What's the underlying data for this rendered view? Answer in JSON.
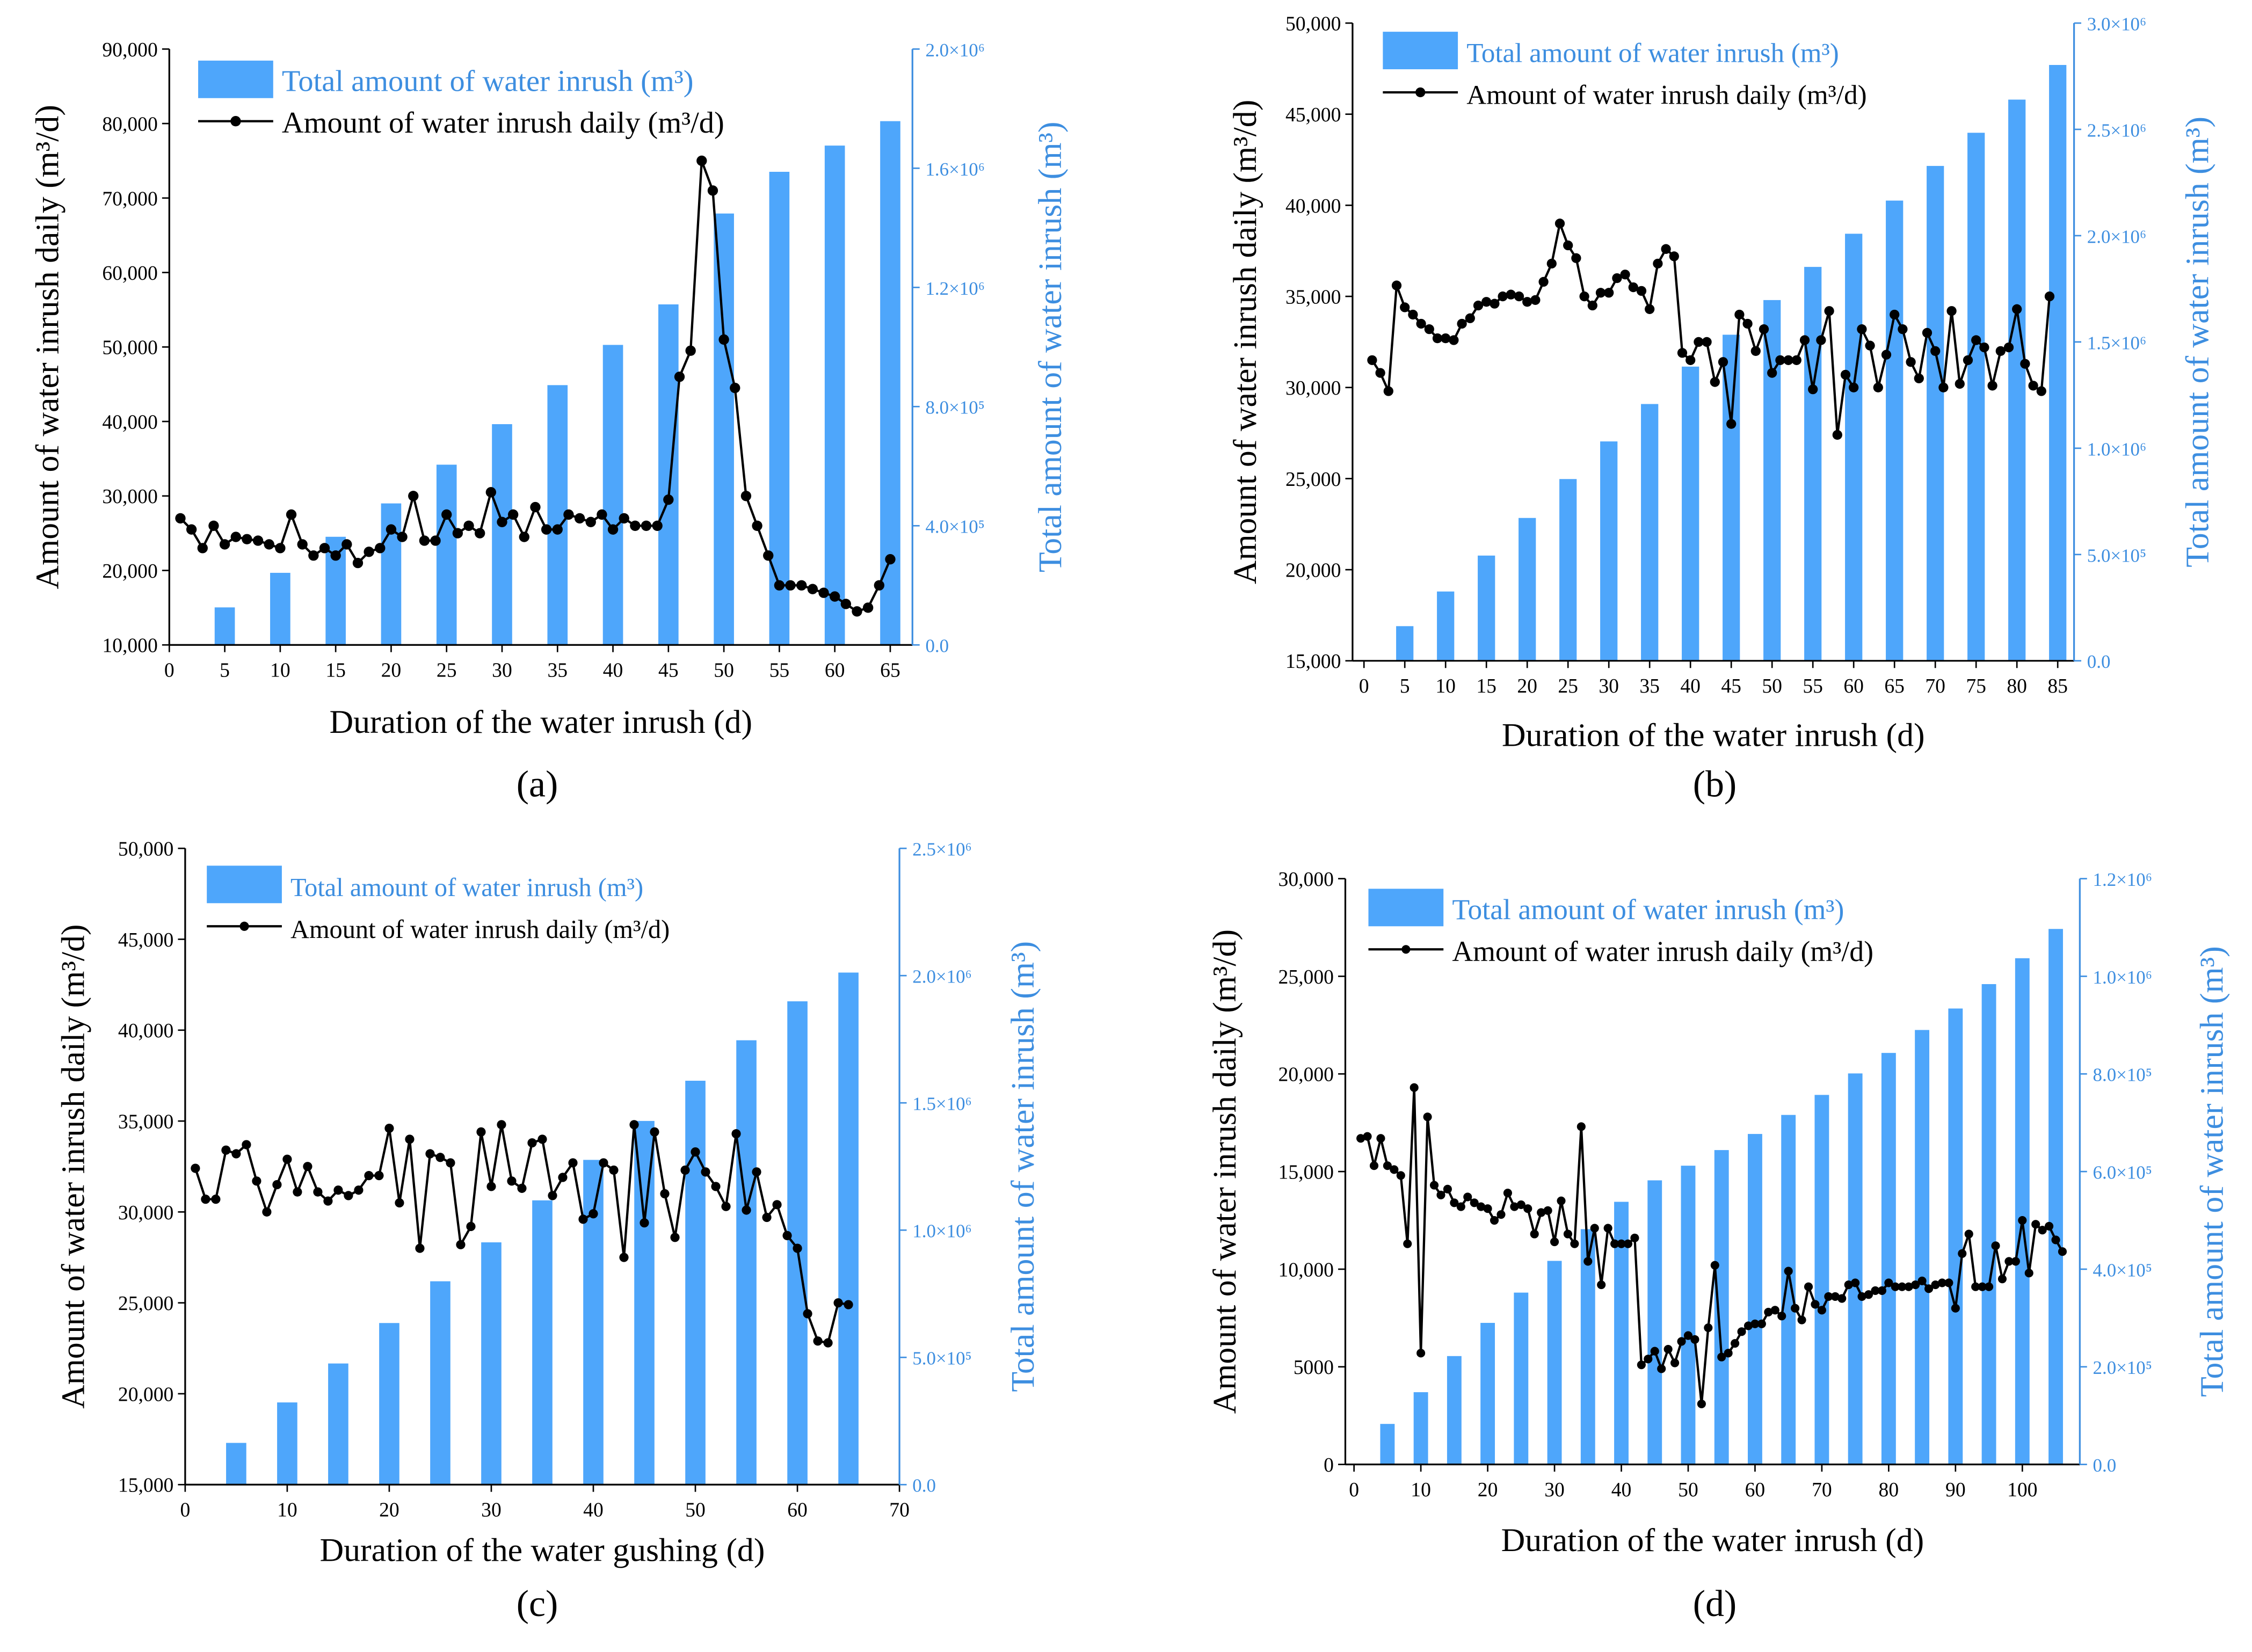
{
  "colors": {
    "bar": "#4ea6fb",
    "right_axis": "#3d8ee0",
    "line": "#000000"
  },
  "legend": {
    "bars": "Total amount of water inrush (m³)",
    "line": "Amount of water inrush daily (m³/d)"
  },
  "chart_data": [
    {
      "panel": "(a)",
      "type": "bar+line",
      "xlabel": "Duration of the water inrush (d)",
      "ylabel": "Amount of water inrush daily (m³/d)",
      "y2label": "Total amount of water inrush (m³)",
      "xlim": [
        0,
        67
      ],
      "ylim": [
        10000,
        90000
      ],
      "y2lim": [
        0,
        2000000
      ],
      "xticks": [
        0,
        5,
        10,
        15,
        20,
        25,
        30,
        35,
        40,
        45,
        50,
        55,
        60,
        65
      ],
      "yticks": [
        10000,
        20000,
        30000,
        40000,
        50000,
        60000,
        70000,
        80000,
        90000
      ],
      "ytick_labels": [
        "10,000",
        "20,000",
        "30,000",
        "40,000",
        "50,000",
        "60,000",
        "70,000",
        "80,000",
        "90,000"
      ],
      "y2ticks": [
        0,
        400000,
        800000,
        1200000,
        1600000,
        2000000
      ],
      "y2tick_labels": [
        "0.0",
        "4.0×10⁵",
        "8.0×10⁵",
        "1.2×10⁶",
        "1.6×10⁶",
        "2.0×10⁶"
      ],
      "bars": {
        "x": [
          5,
          10,
          15,
          20,
          25,
          30,
          35,
          40,
          45,
          50,
          55,
          60,
          65
        ],
        "values": [
          126000,
          242000,
          363000,
          475000,
          605000,
          741000,
          872000,
          1007000,
          1143000,
          1448000,
          1588000,
          1676000,
          1758000
        ]
      },
      "line": {
        "x_start": 1,
        "values": [
          27000,
          25500,
          23000,
          26000,
          23500,
          24500,
          24200,
          24000,
          23500,
          23000,
          27500,
          23500,
          22000,
          23000,
          22000,
          23500,
          21000,
          22500,
          23000,
          25500,
          24500,
          30000,
          24000,
          24000,
          27500,
          25000,
          26000,
          25000,
          30500,
          26500,
          27500,
          24500,
          28500,
          25500,
          25500,
          27500,
          27000,
          26500,
          27500,
          25500,
          27000,
          26000,
          26000,
          26000,
          29500,
          46000,
          49500,
          75000,
          71000,
          51000,
          44500,
          30000,
          26000,
          22000,
          18000,
          18000,
          18000,
          17500,
          17000,
          16500,
          15500,
          14500,
          15000,
          18000,
          21500
        ]
      }
    },
    {
      "panel": "(b)",
      "type": "bar+line",
      "xlabel": "Duration of the water inrush (d)",
      "ylabel": "Amount of water inrush daily (m³/d)",
      "y2label": "Total amount of water inrush (m³)",
      "xlim": [
        -1.4,
        87
      ],
      "ylim": [
        15000,
        50000
      ],
      "y2lim": [
        0,
        3000000
      ],
      "xticks": [
        0,
        5,
        10,
        15,
        20,
        25,
        30,
        35,
        40,
        45,
        50,
        55,
        60,
        65,
        70,
        75,
        80,
        85
      ],
      "yticks": [
        15000,
        20000,
        25000,
        30000,
        35000,
        40000,
        45000,
        50000
      ],
      "ytick_labels": [
        "15,000",
        "20,000",
        "25,000",
        "30,000",
        "35,000",
        "40,000",
        "45,000",
        "50,000"
      ],
      "y2ticks": [
        0,
        500000,
        1000000,
        1500000,
        2000000,
        2500000,
        3000000
      ],
      "y2tick_labels": [
        "0.0",
        "5.0×10⁵",
        "1.0×10⁶",
        "1.5×10⁶",
        "2.0×10⁶",
        "2.5×10⁶",
        "3.0×10⁶"
      ],
      "bars": {
        "x": [
          5,
          10,
          15,
          20,
          25,
          30,
          35,
          40,
          45,
          50,
          55,
          60,
          65,
          70,
          75,
          80,
          85
        ],
        "values": [
          163000,
          326000,
          495000,
          672000,
          855000,
          1032000,
          1208000,
          1384000,
          1534000,
          1697000,
          1853000,
          2009000,
          2165000,
          2328000,
          2484000,
          2640000,
          2803000
        ]
      },
      "line": {
        "x_start": 1,
        "values": [
          31500,
          30800,
          29800,
          35600,
          34400,
          34000,
          33500,
          33200,
          32700,
          32700,
          32600,
          33500,
          33800,
          34500,
          34700,
          34600,
          35000,
          35100,
          35000,
          34700,
          34800,
          35800,
          36800,
          39000,
          37800,
          37100,
          35000,
          34500,
          35200,
          35200,
          36000,
          36200,
          35500,
          35300,
          34300,
          36800,
          37600,
          37200,
          31900,
          31500,
          32500,
          32500,
          30300,
          31400,
          28000,
          34000,
          33500,
          32000,
          33200,
          30800,
          31500,
          31500,
          31500,
          32600,
          29900,
          32600,
          34200,
          27400,
          30700,
          30000,
          33200,
          32300,
          30000,
          31800,
          34000,
          33200,
          31400,
          30500,
          33000,
          32000,
          30000,
          34200,
          30200,
          31500,
          32600,
          32200,
          30100,
          32000,
          32200,
          34300,
          31300,
          30100,
          29800,
          35000
        ]
      }
    },
    {
      "panel": "(c)",
      "type": "bar+line",
      "xlabel": "Duration of the water gushing (d)",
      "ylabel": "Amount of water inrush daily (m³/d)",
      "y2label": "Total amount of water inrush (m³)",
      "xlim": [
        0,
        70
      ],
      "ylim": [
        15000,
        50000
      ],
      "y2lim": [
        0,
        2500000
      ],
      "xticks": [
        0,
        10,
        20,
        30,
        40,
        50,
        60,
        70
      ],
      "yticks": [
        15000,
        20000,
        25000,
        30000,
        35000,
        40000,
        45000,
        50000
      ],
      "ytick_labels": [
        "15,000",
        "20,000",
        "25,000",
        "30,000",
        "35,000",
        "40,000",
        "45,000",
        "50,000"
      ],
      "y2ticks": [
        0,
        500000,
        1000000,
        1500000,
        2000000,
        2500000
      ],
      "y2tick_labels": [
        "0.0",
        "5.0×10⁵",
        "1.0×10⁶",
        "1.5×10⁶",
        "2.0×10⁶",
        "2.5×10⁶"
      ],
      "bars": {
        "x": [
          5,
          10,
          15,
          20,
          25,
          30,
          35,
          40,
          45,
          50,
          55,
          60,
          65
        ],
        "values": [
          164000,
          323000,
          476000,
          635000,
          799000,
          952000,
          1117000,
          1276000,
          1429000,
          1587000,
          1746000,
          1899000,
          2012000
        ]
      },
      "line": {
        "x_start": 1,
        "values": [
          32400,
          30700,
          30700,
          33400,
          33200,
          33700,
          31700,
          30000,
          31500,
          32900,
          31100,
          32500,
          31100,
          30600,
          31200,
          30900,
          31200,
          32000,
          32000,
          34600,
          30500,
          34000,
          28000,
          33200,
          33000,
          32700,
          28200,
          29200,
          34400,
          31400,
          34800,
          31700,
          31300,
          33800,
          34000,
          30900,
          31900,
          32700,
          29600,
          29900,
          32700,
          32300,
          27500,
          34800,
          29400,
          34400,
          31000,
          28600,
          32300,
          33300,
          32200,
          31400,
          30300,
          34300,
          30100,
          32200,
          29700,
          30400,
          28700,
          28000,
          24400,
          22900,
          22800,
          25000,
          24900
        ]
      }
    },
    {
      "panel": "(d)",
      "type": "bar+line",
      "xlabel": "Duration of the water inrush (d)",
      "ylabel": "Amount of water inrush daily (m³/d)",
      "y2label": "Total amount of water inrush (m³)",
      "xlim": [
        -1.3,
        108.6
      ],
      "ylim": [
        0,
        30000
      ],
      "y2lim": [
        0,
        1200000
      ],
      "xticks": [
        0,
        10,
        20,
        30,
        40,
        50,
        60,
        70,
        80,
        90,
        100
      ],
      "yticks": [
        0,
        5000,
        10000,
        15000,
        20000,
        25000,
        30000
      ],
      "ytick_labels": [
        "0",
        "5000",
        "10,000",
        "15,000",
        "20,000",
        "25,000",
        "30,000"
      ],
      "y2ticks": [
        0,
        200000,
        400000,
        600000,
        800000,
        1000000,
        1200000
      ],
      "y2tick_labels": [
        "0.0",
        "2.0×10⁵",
        "4.0×10⁵",
        "6.0×10⁵",
        "8.0×10⁵",
        "1.0×10⁶",
        "1.2×10⁶"
      ],
      "bars": {
        "x": [
          5,
          10,
          15,
          20,
          25,
          30,
          35,
          40,
          45,
          50,
          55,
          60,
          65,
          70,
          75,
          80,
          85,
          90,
          95,
          100,
          105
        ],
        "values": [
          83000,
          148000,
          222000,
          290000,
          352000,
          417000,
          482000,
          538000,
          582000,
          612000,
          644000,
          677000,
          716000,
          757000,
          801000,
          843000,
          890000,
          934000,
          984000,
          1037000,
          1097000
        ]
      },
      "line": {
        "x_start": 1,
        "values": [
          16700,
          16800,
          15300,
          16700,
          15300,
          15100,
          14800,
          11300,
          19300,
          5700,
          17800,
          14300,
          13800,
          14100,
          13400,
          13200,
          13700,
          13400,
          13200,
          13100,
          12500,
          12800,
          13900,
          13200,
          13300,
          13100,
          11800,
          12900,
          13000,
          11400,
          13500,
          11800,
          11300,
          17300,
          10400,
          12100,
          9200,
          12100,
          11300,
          11300,
          11300,
          11600,
          5100,
          5400,
          5800,
          4900,
          5900,
          5200,
          6300,
          6600,
          6400,
          3100,
          7000,
          10200,
          5500,
          5700,
          6200,
          6800,
          7100,
          7200,
          7200,
          7800,
          7900,
          7600,
          9900,
          8000,
          7400,
          9100,
          8200,
          7900,
          8600,
          8600,
          8500,
          9200,
          9300,
          8600,
          8700,
          8900,
          8900,
          9300,
          9100,
          9100,
          9100,
          9200,
          9400,
          9000,
          9200,
          9300,
          9300,
          8000,
          10800,
          11800,
          9100,
          9100,
          9100,
          11200,
          9500,
          10400,
          10400,
          12500,
          9800,
          12300,
          12000,
          12200,
          11500,
          10900
        ]
      }
    }
  ]
}
